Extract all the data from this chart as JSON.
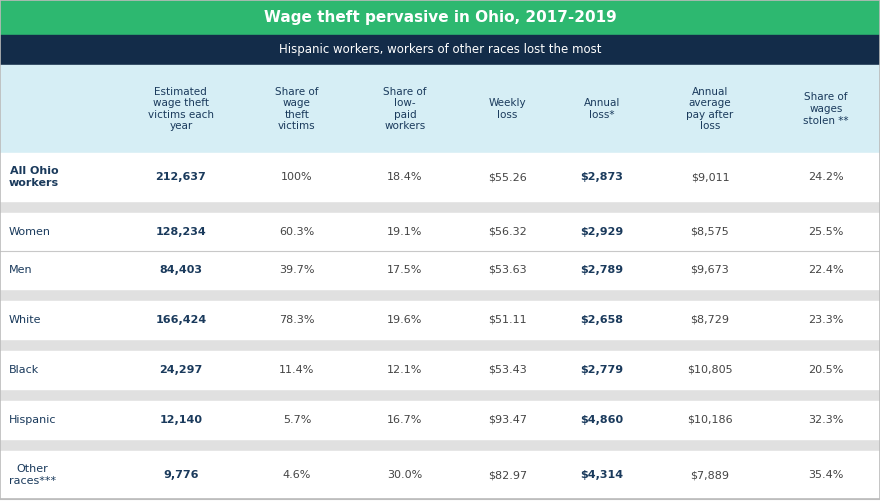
{
  "title": "Wage theft pervasive in Ohio, 2017-2019",
  "subtitle": "Hispanic workers, workers of other races lost the most",
  "title_bg": "#2db870",
  "subtitle_bg": "#132c49",
  "header_bg": "#d6eef5",
  "gap_bg": "#e8e8e8",
  "row_bg": "#ffffff",
  "col_headers": [
    "Estimated\nwage theft\nvictims each\nyear",
    "Share of\nwage\ntheft\nvictims",
    "Share of\nlow-\npaid\nworkers",
    "Weekly\nloss",
    "Annual\nloss*",
    "Annual\naverage\npay after\nloss",
    "Share of\nwages\nstolen **"
  ],
  "rows": [
    {
      "label": "All Ohio\nworkers",
      "values": [
        "212,637",
        "100%",
        "18.4%",
        "$55.26",
        "$2,873",
        "$9,011",
        "24.2%"
      ],
      "bold_cols": [
        0,
        4
      ],
      "label_bold": true,
      "group_end": true
    },
    {
      "label": "Women",
      "values": [
        "128,234",
        "60.3%",
        "19.1%",
        "$56.32",
        "$2,929",
        "$8,575",
        "25.5%"
      ],
      "bold_cols": [
        0,
        4
      ],
      "label_bold": false,
      "group_end": false
    },
    {
      "label": "Men",
      "values": [
        "84,403",
        "39.7%",
        "17.5%",
        "$53.63",
        "$2,789",
        "$9,673",
        "22.4%"
      ],
      "bold_cols": [
        0,
        4
      ],
      "label_bold": false,
      "group_end": true
    },
    {
      "label": "White",
      "values": [
        "166,424",
        "78.3%",
        "19.6%",
        "$51.11",
        "$2,658",
        "$8,729",
        "23.3%"
      ],
      "bold_cols": [
        0,
        4
      ],
      "label_bold": false,
      "group_end": true
    },
    {
      "label": "Black",
      "values": [
        "24,297",
        "11.4%",
        "12.1%",
        "$53.43",
        "$2,779",
        "$10,805",
        "20.5%"
      ],
      "bold_cols": [
        0,
        4
      ],
      "label_bold": false,
      "group_end": true
    },
    {
      "label": "Hispanic",
      "values": [
        "12,140",
        "5.7%",
        "16.7%",
        "$93.47",
        "$4,860",
        "$10,186",
        "32.3%"
      ],
      "bold_cols": [
        0,
        4
      ],
      "label_bold": false,
      "group_end": true
    },
    {
      "label": "Other\nraces***",
      "values": [
        "9,776",
        "4.6%",
        "30.0%",
        "$82.97",
        "$4,314",
        "$7,889",
        "35.4%"
      ],
      "bold_cols": [
        0,
        4
      ],
      "label_bold": false,
      "group_end": false
    }
  ],
  "title_color": "#ffffff",
  "subtitle_color": "#ffffff",
  "header_text_color": "#1a3a5c",
  "label_color": "#1a3a5c",
  "value_color": "#444444",
  "bold_value_color": "#1a3a5c",
  "sep_color": "#c8c8c8",
  "gap_color": "#e0e0e0",
  "figsize": [
    8.8,
    5.04
  ],
  "dpi": 100
}
